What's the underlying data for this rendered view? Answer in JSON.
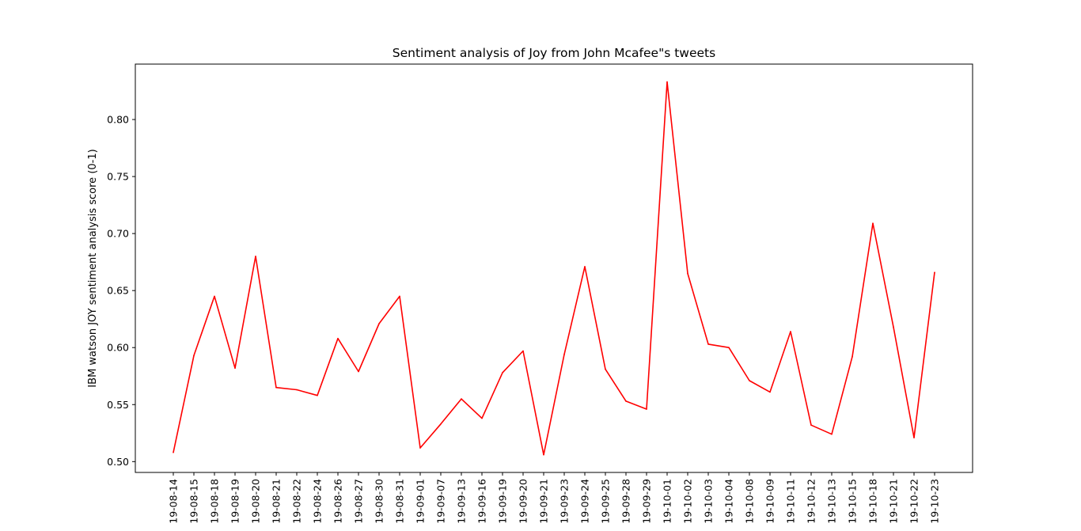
{
  "chart_data": {
    "type": "line",
    "title": "Sentiment analysis of Joy from John Mcafee\"s tweets",
    "xlabel": "",
    "ylabel": "IBM watson JOY sentiment analysis score (0-1)",
    "x_tick_labels": [
      "19-08-14",
      "19-08-15",
      "19-08-18",
      "19-08-19",
      "19-08-20",
      "19-08-21",
      "19-08-22",
      "19-08-24",
      "19-08-26",
      "19-08-27",
      "19-08-30",
      "19-08-31",
      "19-09-01",
      "19-09-07",
      "19-09-13",
      "19-09-16",
      "19-09-19",
      "19-09-20",
      "19-09-21",
      "19-09-23",
      "19-09-24",
      "19-09-25",
      "19-09-28",
      "19-09-29",
      "19-10-01",
      "19-10-02",
      "19-10-03",
      "19-10-04",
      "19-10-08",
      "19-10-09",
      "19-10-11",
      "19-10-12",
      "19-10-13",
      "19-10-15",
      "19-10-18",
      "19-10-21",
      "19-10-22",
      "19-10-23"
    ],
    "series": [
      {
        "color": "#ff0000",
        "values": [
          0.508,
          0.593,
          0.645,
          0.582,
          0.68,
          0.565,
          0.563,
          0.558,
          0.608,
          0.579,
          0.621,
          0.645,
          0.512,
          0.533,
          0.555,
          0.538,
          0.578,
          0.597,
          0.506,
          0.594,
          0.671,
          0.581,
          0.553,
          0.546,
          0.833,
          0.665,
          0.603,
          0.6,
          0.571,
          0.561,
          0.614,
          0.532,
          0.524,
          0.592,
          0.709,
          0.618,
          0.521,
          0.666
        ]
      }
    ],
    "y_ticks": [
      "0.50",
      "0.55",
      "0.60",
      "0.65",
      "0.70",
      "0.75",
      "0.80"
    ],
    "ylim": [
      0.4905,
      0.8486
    ],
    "grid": false,
    "legend": "none"
  }
}
